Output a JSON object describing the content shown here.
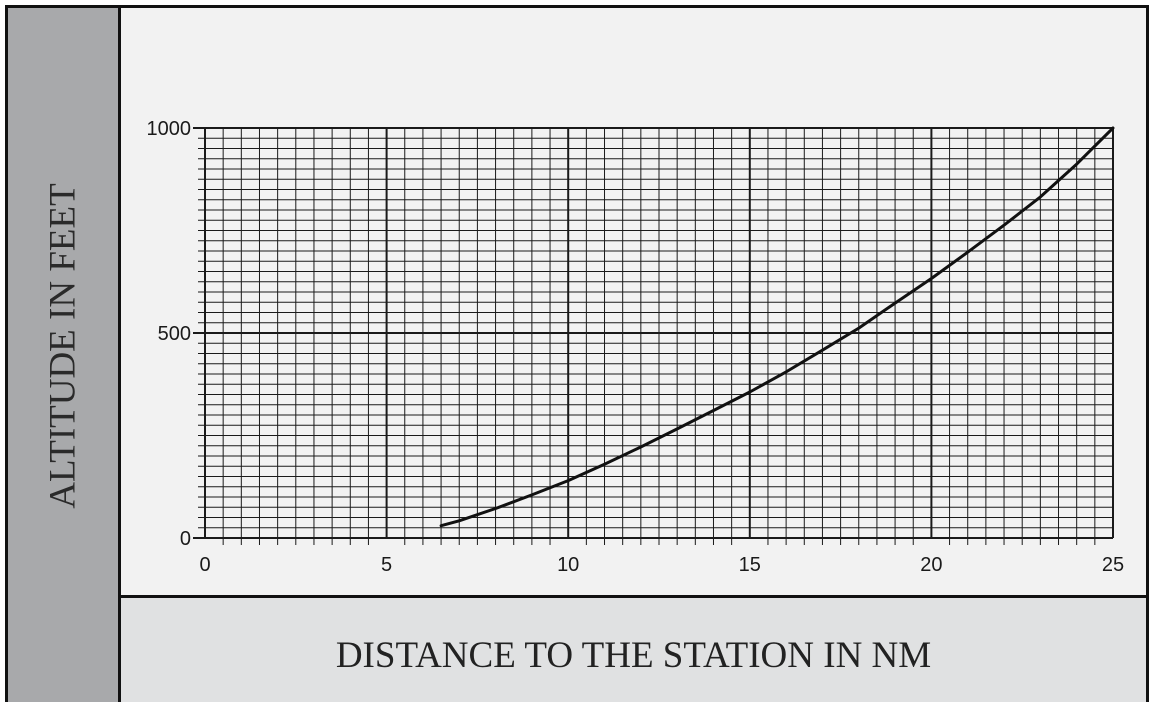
{
  "chart_data": {
    "type": "line",
    "title": "",
    "xlabel": "DISTANCE TO THE STATION IN NM",
    "ylabel": "ALTITUDE IN FEET",
    "xlim": [
      0,
      25
    ],
    "ylim": [
      0,
      1000
    ],
    "xticks": [
      "0",
      "5",
      "10",
      "15",
      "20",
      "25"
    ],
    "yticks": [
      "0",
      "500",
      "1000"
    ],
    "grid": true,
    "series": [
      {
        "x": [
          6.5,
          7,
          8,
          9,
          10,
          11,
          12,
          13,
          14,
          15,
          16,
          17,
          18,
          19,
          20,
          21,
          22,
          23,
          24,
          25
        ],
        "y": [
          30,
          42,
          72,
          105,
          140,
          180,
          222,
          266,
          311,
          356,
          405,
          458,
          512,
          573,
          633,
          697,
          763,
          832,
          912,
          1000
        ]
      }
    ]
  },
  "colors": {
    "band_y": "#a8a9ab",
    "band_x": "#e0e1e2",
    "plot_bg": "#f2f2f2",
    "ink": "#111111"
  }
}
